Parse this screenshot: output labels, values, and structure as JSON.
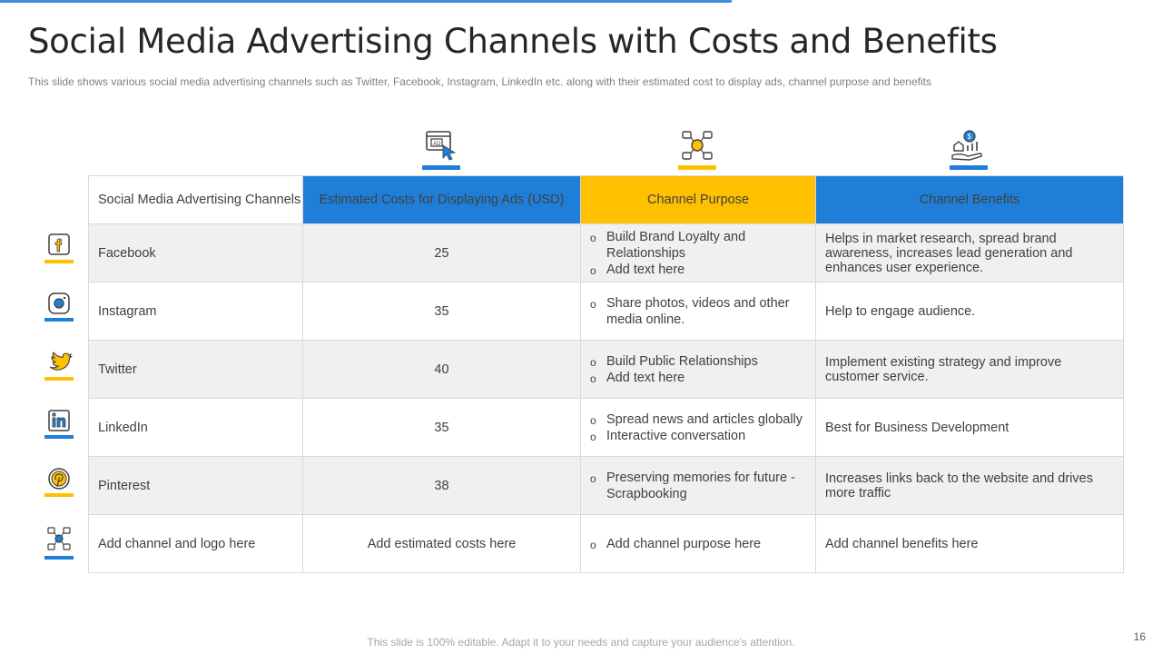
{
  "title": "Social Media Advertising Channels with Costs and Benefits",
  "subtitle": "This slide shows various  social media advertising  channels such as Twitter, Facebook, Instagram, LinkedIn  etc. along with their estimated cost to display ads, channel purpose  and benefits",
  "headers": {
    "channel": "Social Media Advertising Channels",
    "cost": "Estimated Costs for Displaying Ads (USD)",
    "purpose": "Channel Purpose",
    "benefits": "Channel Benefits"
  },
  "header_icons": [
    "ad-click-icon",
    "network-icon",
    "benefit-hand-icon"
  ],
  "rows": [
    {
      "channel": "Facebook",
      "cost": "25",
      "purpose": [
        "Build Brand Loyalty and Relationships",
        "Add text here"
      ],
      "benefits": "Helps in market research, spread brand awareness, increases lead generation and enhances user experience.",
      "icon": "facebook-icon"
    },
    {
      "channel": "Instagram",
      "cost": "35",
      "purpose": [
        "Share photos, videos and other media online."
      ],
      "benefits": "Help to engage audience.",
      "icon": "instagram-icon"
    },
    {
      "channel": "Twitter",
      "cost": "40",
      "purpose": [
        "Build Public Relationships",
        "Add text here"
      ],
      "benefits": "Implement existing strategy and improve customer service.",
      "icon": "twitter-icon"
    },
    {
      "channel": "LinkedIn",
      "cost": "35",
      "purpose": [
        "Spread news and articles globally",
        "Interactive conversation"
      ],
      "benefits": "Best for Business Development",
      "icon": "linkedin-icon"
    },
    {
      "channel": "Pinterest",
      "cost": "38",
      "purpose": [
        "Preserving memories for future - Scrapbooking"
      ],
      "benefits": "Increases links back to the website and drives more traffic",
      "icon": "pinterest-icon"
    },
    {
      "channel": "Add channel and logo here",
      "cost": "Add estimated costs here",
      "purpose": [
        "Add channel purpose here"
      ],
      "benefits": "Add channel benefits here",
      "icon": "social-network-icon"
    }
  ],
  "colors": {
    "blue": "#1f7fd8",
    "yellow": "#ffc000",
    "shade": "#f0f0f0"
  },
  "footer": "This slide is 100% editable. Adapt it to your needs and capture your audience's attention.",
  "page_number": "16"
}
